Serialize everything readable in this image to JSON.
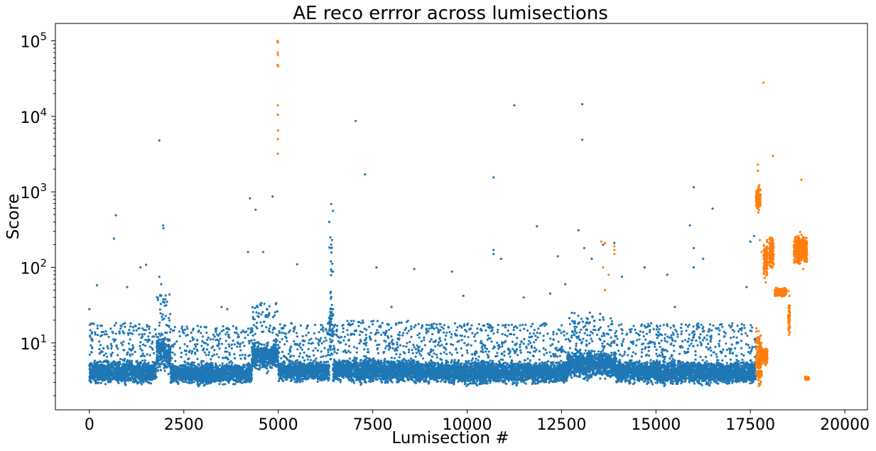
{
  "chart_data": {
    "type": "scatter",
    "title": "AE reco errror across lumisections",
    "xlabel": "Lumisection #",
    "ylabel": "Score",
    "xlim": [
      -900,
      20600
    ],
    "ylim": [
      1.3,
      170000
    ],
    "yscale": "log",
    "grid": false,
    "legend": "none",
    "x_ticks": [
      0,
      2500,
      5000,
      7500,
      10000,
      12500,
      15000,
      17500,
      20000
    ],
    "x_tick_labels": [
      "0",
      "2500",
      "5000",
      "7500",
      "10000",
      "12500",
      "15000",
      "17500",
      "20000"
    ],
    "y_ticks": [
      10,
      100,
      1000,
      10000,
      100000
    ],
    "y_tick_labels": [
      {
        "base": "10",
        "exp": "1"
      },
      {
        "base": "10",
        "exp": "2"
      },
      {
        "base": "10",
        "exp": "3"
      },
      {
        "base": "10",
        "exp": "4"
      },
      {
        "base": "10",
        "exp": "5"
      }
    ],
    "series": [
      {
        "color": "#1f77b4",
        "points": [
          [
            0,
            28
          ],
          [
            200,
            58
          ],
          [
            700,
            490
          ],
          [
            650,
            240
          ],
          [
            1000,
            55
          ],
          [
            1350,
            100
          ],
          [
            1500,
            108
          ],
          [
            1850,
            4800
          ],
          [
            1950,
            360
          ],
          [
            1960,
            330
          ],
          [
            1850,
            75
          ],
          [
            1900,
            60
          ],
          [
            4200,
            160
          ],
          [
            4250,
            820
          ],
          [
            4400,
            580
          ],
          [
            4850,
            870
          ],
          [
            4600,
            160
          ],
          [
            5500,
            110
          ],
          [
            6350,
            400
          ],
          [
            6400,
            690
          ],
          [
            6450,
            560
          ],
          [
            6380,
            250
          ],
          [
            6420,
            230
          ],
          [
            6400,
            200
          ],
          [
            6400,
            180
          ],
          [
            7050,
            8700
          ],
          [
            7300,
            1700
          ],
          [
            7600,
            100
          ],
          [
            8600,
            95
          ],
          [
            9600,
            88
          ],
          [
            10700,
            1550
          ],
          [
            10700,
            170
          ],
          [
            10700,
            150
          ],
          [
            10900,
            130
          ],
          [
            11250,
            14000
          ],
          [
            11850,
            350
          ],
          [
            12400,
            140
          ],
          [
            12600,
            60
          ],
          [
            12950,
            310
          ],
          [
            13050,
            14500
          ],
          [
            13050,
            4900
          ],
          [
            13100,
            180
          ],
          [
            13300,
            130
          ],
          [
            13600,
            200
          ],
          [
            13900,
            210
          ],
          [
            14100,
            75
          ],
          [
            14700,
            100
          ],
          [
            15300,
            80
          ],
          [
            15900,
            360
          ],
          [
            16000,
            1150
          ],
          [
            16000,
            180
          ],
          [
            16000,
            100
          ],
          [
            16250,
            130
          ],
          [
            16500,
            600
          ],
          [
            17500,
            220
          ],
          [
            17600,
            260
          ],
          [
            3500,
            30
          ],
          [
            3650,
            28
          ],
          [
            8000,
            30
          ],
          [
            9900,
            42
          ],
          [
            11500,
            40
          ],
          [
            12200,
            45
          ],
          [
            15500,
            30
          ],
          [
            17400,
            55
          ]
        ],
        "bands": [
          {
            "x": [
              0,
              1780
            ],
            "y": [
              2.6,
              6.5
            ]
          },
          {
            "x": [
              1780,
              2150
            ],
            "y": [
              3.5,
              16
            ]
          },
          {
            "x": [
              2150,
              4300
            ],
            "y": [
              2.6,
              6
            ]
          },
          {
            "x": [
              4300,
              5000
            ],
            "y": [
              3.8,
              12
            ]
          },
          {
            "x": [
              5000,
              6350
            ],
            "y": [
              2.8,
              6.5
            ]
          },
          {
            "x": [
              6350,
              6450
            ],
            "y": [
              4,
              70
            ]
          },
          {
            "x": [
              6450,
              8600
            ],
            "y": [
              2.7,
              7
            ]
          },
          {
            "x": [
              8600,
              12650
            ],
            "y": [
              2.6,
              6.5
            ]
          },
          {
            "x": [
              12650,
              13950
            ],
            "y": [
              3,
              9
            ]
          },
          {
            "x": [
              13950,
              17650
            ],
            "y": [
              2.6,
              6.5
            ]
          }
        ]
      },
      {
        "color": "#ff7f0e",
        "points": [
          [
            4980,
            100000
          ],
          [
            4990,
            95000
          ],
          [
            4985,
            70000
          ],
          [
            4990,
            65000
          ],
          [
            4980,
            48000
          ],
          [
            5000,
            46000
          ],
          [
            4990,
            14000
          ],
          [
            4990,
            10500
          ],
          [
            4995,
            6500
          ],
          [
            4990,
            5000
          ],
          [
            4990,
            3200
          ],
          [
            17850,
            28000
          ],
          [
            18100,
            3000
          ],
          [
            18850,
            1450
          ],
          [
            17700,
            2300
          ],
          [
            17700,
            1900
          ],
          [
            13550,
            220
          ],
          [
            13650,
            210
          ],
          [
            13600,
            100
          ],
          [
            13650,
            50
          ],
          [
            13750,
            80
          ],
          [
            13900,
            190
          ],
          [
            13900,
            170
          ],
          [
            13900,
            150
          ],
          [
            17750,
            230
          ],
          [
            17800,
            160
          ],
          [
            18900,
            95
          ]
        ],
        "bands": [
          {
            "x": [
              17650,
              17770
            ],
            "y": [
              500,
              1300
            ]
          },
          {
            "x": [
              17650,
              17800
            ],
            "y": [
              2.2,
              18
            ]
          },
          {
            "x": [
              17800,
              17950
            ],
            "y": [
              5,
              9
            ]
          },
          {
            "x": [
              17850,
              17950
            ],
            "y": [
              60,
              250
            ]
          },
          {
            "x": [
              18000,
              18120
            ],
            "y": [
              80,
              300
            ]
          },
          {
            "x": [
              18150,
              18450
            ],
            "y": [
              40,
              55
            ]
          },
          {
            "x": [
              18500,
              18550
            ],
            "y": [
              10,
              50
            ]
          },
          {
            "x": [
              18650,
              19000
            ],
            "y": [
              100,
              300
            ]
          },
          {
            "x": [
              18950,
              19050
            ],
            "y": [
              3.2,
              3.6
            ]
          }
        ]
      }
    ]
  }
}
